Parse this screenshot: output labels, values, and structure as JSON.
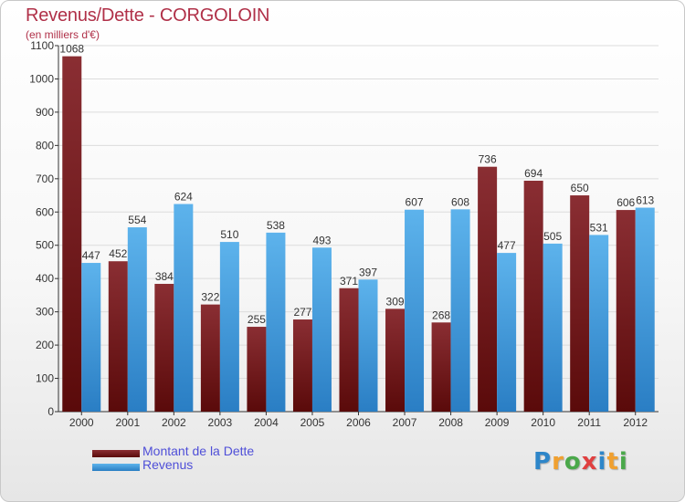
{
  "title": "Revenus/Dette - CORGOLOIN",
  "subtitle": "(en milliers d'€)",
  "colors": {
    "title": "#b03048",
    "debt_top": "#8a2e33",
    "debt_bottom": "#5a0a0a",
    "revenue_top": "#5db3ec",
    "revenue_bottom": "#2a7ec4",
    "legend_text": "#4f4fd8"
  },
  "legend": {
    "debt": "Montant de la Dette",
    "revenue": "Revenus"
  },
  "logo": {
    "text": "Proxiti",
    "letters": [
      "P",
      "r",
      "o",
      "x",
      "i",
      "t",
      "i"
    ],
    "colors": [
      "#2e86c9",
      "#f0a030",
      "#4aa84a",
      "#e04040",
      "#2e86c9",
      "#f0a030",
      "#4aa84a"
    ]
  },
  "chart_data": {
    "type": "bar",
    "categories": [
      "2000",
      "2001",
      "2002",
      "2003",
      "2004",
      "2005",
      "2006",
      "2007",
      "2008",
      "2009",
      "2010",
      "2011",
      "2012"
    ],
    "series": [
      {
        "name": "Montant de la Dette",
        "values": [
          1068,
          452,
          384,
          322,
          255,
          277,
          371,
          309,
          268,
          736,
          694,
          650,
          606
        ]
      },
      {
        "name": "Revenus",
        "values": [
          447,
          554,
          624,
          510,
          538,
          493,
          397,
          607,
          608,
          477,
          505,
          531,
          613
        ]
      }
    ],
    "ylim": [
      0,
      1100
    ],
    "yticks": [
      0,
      100,
      200,
      300,
      400,
      500,
      600,
      700,
      800,
      900,
      1000,
      1100
    ],
    "grid": true,
    "legend_position": "bottom-left"
  }
}
